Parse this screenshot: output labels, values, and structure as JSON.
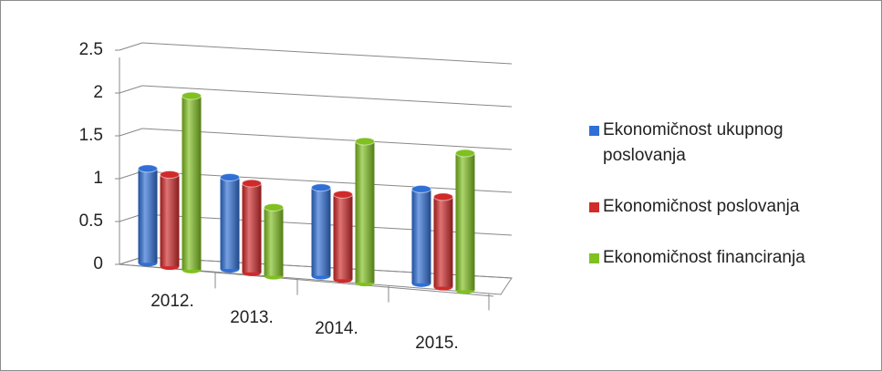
{
  "chart_data": {
    "type": "bar3d",
    "categories": [
      "2012.",
      "2013.",
      "2014.",
      "2015."
    ],
    "series": [
      {
        "name": "Ekonomičnost ukupnog poslovanja",
        "color": "#2f6fd6",
        "values": [
          1.1,
          1.07,
          1.03,
          1.1
        ]
      },
      {
        "name": "Ekonomičnost poslovanja",
        "color": "#d02a2a",
        "values": [
          1.07,
          1.04,
          0.99,
          1.05
        ]
      },
      {
        "name": "Ekonomičnost financiranja",
        "color": "#80c020",
        "values": [
          2.03,
          0.8,
          1.65,
          1.6
        ]
      }
    ],
    "ylim": [
      0,
      2.5
    ],
    "yticks": [
      0,
      {
        "value": 0.5,
        "label": "0.5"
      },
      1,
      {
        "value": 1.5,
        "label": "1.5"
      },
      2,
      {
        "value": 2.5,
        "label": "2.5"
      }
    ],
    "grid": true,
    "legend": "right"
  }
}
